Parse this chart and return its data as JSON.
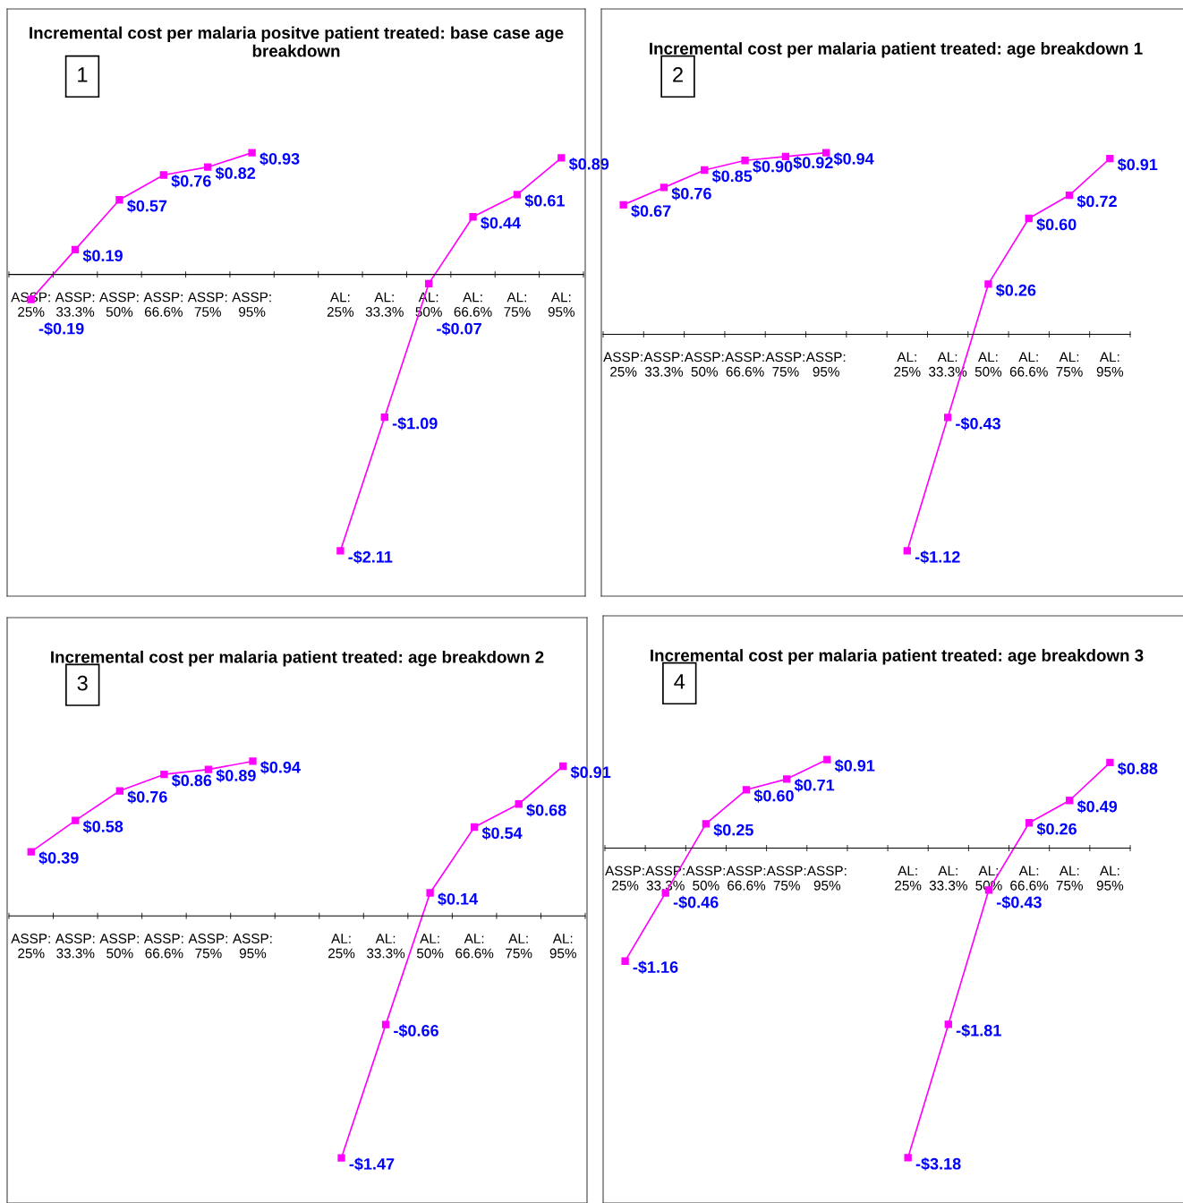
{
  "chart_data": [
    {
      "type": "line",
      "title": "Incremental cost per malaria positve patient treated: base case age breakdown",
      "annotations": [
        "1"
      ],
      "categories": [
        "ASSP:\n25%",
        "ASSP:\n33.3%",
        "ASSP:\n50%",
        "ASSP:\n66.6%",
        "ASSP:\n75%",
        "ASSP:\n95%",
        null,
        "AL:\n25%",
        "AL:\n33.3%",
        "AL:\n50%",
        "AL:\n66.6%",
        "AL:\n75%",
        "AL:\n95%"
      ],
      "series": [
        {
          "color": "#ff00ff",
          "values": [
            -0.19,
            0.19,
            0.57,
            0.76,
            0.82,
            0.93,
            null,
            -2.11,
            -1.09,
            -0.07,
            0.44,
            0.61,
            0.89
          ],
          "value_labels": [
            "-$0.19",
            "$0.19",
            "$0.57",
            "$0.76",
            "$0.82",
            "$0.93",
            null,
            "-$2.11",
            "-$1.09",
            "-$0.07",
            "$0.44",
            "$0.61",
            "$0.89"
          ]
        }
      ],
      "marker": "square",
      "line_style": "solid",
      "grid": false,
      "legend": false
    },
    {
      "type": "line",
      "title": "Incremental cost per malaria patient treated: age breakdown 1",
      "annotations": [
        "2"
      ],
      "categories": [
        "ASSP:\n25%",
        "ASSP:\n33.3%",
        "ASSP:\n50%",
        "ASSP:\n66.6%",
        "ASSP:\n75%",
        "ASSP:\n95%",
        null,
        "AL:\n25%",
        "AL:\n33.3%",
        "AL:\n50%",
        "AL:\n66.6%",
        "AL:\n75%",
        "AL:\n95%"
      ],
      "series": [
        {
          "color": "#ff00ff",
          "values": [
            0.67,
            0.76,
            0.85,
            0.9,
            0.92,
            0.94,
            null,
            -1.12,
            -0.43,
            0.26,
            0.6,
            0.72,
            0.91
          ],
          "value_labels": [
            "$0.67",
            "$0.76",
            "$0.85",
            "$0.90",
            "$0.92",
            "$0.94",
            null,
            "-$1.12",
            "-$0.43",
            "$0.26",
            "$0.60",
            "$0.72",
            "$0.91"
          ]
        }
      ],
      "marker": "square",
      "line_style": "solid",
      "grid": false,
      "legend": false
    },
    {
      "type": "line",
      "title": "Incremental cost per malaria patient treated: age breakdown 2",
      "annotations": [
        "3"
      ],
      "categories": [
        "ASSP:\n25%",
        "ASSP:\n33.3%",
        "ASSP:\n50%",
        "ASSP:\n66.6%",
        "ASSP:\n75%",
        "ASSP:\n95%",
        null,
        "AL:\n25%",
        "AL:\n33.3%",
        "AL:\n50%",
        "AL:\n66.6%",
        "AL:\n75%",
        "AL:\n95%"
      ],
      "series": [
        {
          "color": "#ff00ff",
          "values": [
            0.39,
            0.58,
            0.76,
            0.86,
            0.89,
            0.94,
            null,
            -1.47,
            -0.66,
            0.14,
            0.54,
            0.68,
            0.91
          ],
          "value_labels": [
            "$0.39",
            "$0.58",
            "$0.76",
            "$0.86",
            "$0.89",
            "$0.94",
            null,
            "-$1.47",
            "-$0.66",
            "$0.14",
            "$0.54",
            "$0.68",
            "$0.91"
          ]
        }
      ],
      "marker": "square",
      "line_style": "solid",
      "grid": false,
      "legend": false
    },
    {
      "type": "line",
      "title": "Incremental cost per malaria patient treated: age breakdown 3",
      "annotations": [
        "4"
      ],
      "categories": [
        "ASSP:\n25%",
        "ASSP:\n33.3%",
        "ASSP:\n50%",
        "ASSP:\n66.6%",
        "ASSP:\n75%",
        "ASSP:\n95%",
        null,
        "AL:\n25%",
        "AL:\n33.3%",
        "AL:\n50%",
        "AL:\n66.6%",
        "AL:\n75%",
        "AL:\n95%"
      ],
      "series": [
        {
          "color": "#ff00ff",
          "values": [
            -1.16,
            -0.46,
            0.25,
            0.6,
            0.71,
            0.91,
            null,
            -3.18,
            -1.81,
            -0.43,
            0.26,
            0.49,
            0.88
          ],
          "value_labels": [
            "-$1.16",
            "-$0.46",
            "$0.25",
            "$0.60",
            "$0.71",
            "$0.91",
            null,
            "-$3.18",
            "-$1.81",
            "-$0.43",
            "$0.26",
            "$0.49",
            "$0.88"
          ]
        }
      ],
      "marker": "square",
      "line_style": "solid",
      "grid": false,
      "legend": false
    }
  ]
}
